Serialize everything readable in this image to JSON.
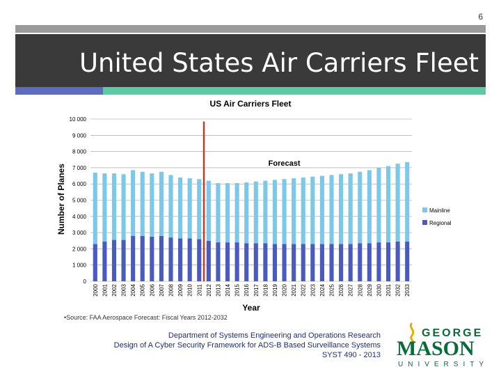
{
  "slide": {
    "number": "6",
    "title": "United States Air Carriers Fleet",
    "source_note": "•Source: FAA Aerospace Forecast: Fiscal Years 2012-2032",
    "footer": {
      "line1": "Department of Systems Engineering and Operations Research",
      "line2": "Design of A Cyber Security Framework for ADS-B Based Surveillance Systems",
      "line3": "SYST 490 - 2013"
    },
    "logo": {
      "icon": "george-mason-university-logo",
      "top": "GEORGE",
      "main": "MASON",
      "bottom": "UNIVERSITY"
    },
    "colors": {
      "title_band": "#3a3a3a",
      "accent_left": "#5f6bbf",
      "accent_right": "#5ccaa5",
      "footer_text": "#1f2d75",
      "logo_green": "#0a6b3a",
      "logo_gold": "#e0b000"
    }
  },
  "chart_data": {
    "type": "bar",
    "stacked": true,
    "title": "US Air Carriers Fleet",
    "xlabel": "Year",
    "ylabel": "Number of Planes",
    "ylim": [
      0,
      10000
    ],
    "yticks": [
      0,
      1000,
      2000,
      3000,
      4000,
      5000,
      6000,
      7000,
      8000,
      9000,
      10000
    ],
    "ytick_labels": [
      "0",
      "1 000",
      "2 000",
      "3 000",
      "4 000",
      "5 000",
      "6 000",
      "7 000",
      "8 000",
      "9 000",
      "10 000"
    ],
    "grid": true,
    "legend_position": "right",
    "categories": [
      "2000",
      "2001",
      "2002",
      "2003",
      "2004",
      "2005",
      "2006",
      "2007",
      "2008",
      "2009",
      "2010",
      "2011",
      "2012",
      "2013",
      "2014",
      "2015",
      "2016",
      "2017",
      "2018",
      "2019",
      "2020",
      "2021",
      "2022",
      "2023",
      "2024",
      "2025",
      "2026",
      "2027",
      "2028",
      "2029",
      "2030",
      "2031",
      "2032",
      "2033"
    ],
    "series": [
      {
        "name": "Regional",
        "color": "#4a5bbf",
        "values": [
          2300,
          2450,
          2550,
          2550,
          2800,
          2800,
          2750,
          2800,
          2700,
          2650,
          2650,
          2600,
          2500,
          2400,
          2400,
          2400,
          2350,
          2350,
          2350,
          2300,
          2300,
          2300,
          2300,
          2300,
          2300,
          2300,
          2300,
          2300,
          2350,
          2350,
          2400,
          2400,
          2450,
          2450
        ]
      },
      {
        "name": "Mainline",
        "color": "#7cc8e8",
        "values": [
          4400,
          4200,
          4100,
          4050,
          4050,
          3950,
          3900,
          3950,
          3850,
          3750,
          3700,
          3700,
          3700,
          3650,
          3650,
          3650,
          3750,
          3800,
          3850,
          3950,
          4000,
          4050,
          4100,
          4150,
          4200,
          4250,
          4300,
          4350,
          4400,
          4500,
          4600,
          4700,
          4800,
          4900
        ]
      }
    ],
    "annotations": [
      {
        "type": "vline",
        "x": "2011.5",
        "color": "#c0392b"
      },
      {
        "type": "text",
        "text": "Forecast",
        "x": "2020",
        "y": 7300
      }
    ]
  }
}
